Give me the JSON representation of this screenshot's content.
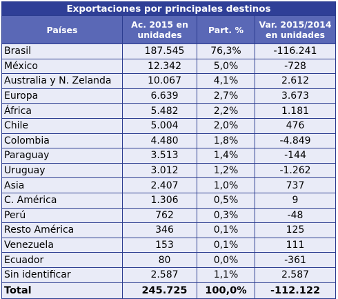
{
  "title": "Exportaciones por principales destinos",
  "columns": {
    "country": "Países",
    "units_line1": "Ac. 2015 en",
    "units_line2": "unidades",
    "share": "Part. %",
    "var_line1": "Var. 2015/2014",
    "var_line2": "en unidades"
  },
  "rows": [
    {
      "country": "Brasil",
      "units": "187.545",
      "share": "76,3%",
      "var": "-116.241"
    },
    {
      "country": "México",
      "units": "12.342",
      "share": "5,0%",
      "var": "-728"
    },
    {
      "country": "Australia y N. Zelanda",
      "units": "10.067",
      "share": "4,1%",
      "var": "2.612"
    },
    {
      "country": "Europa",
      "units": "6.639",
      "share": "2,7%",
      "var": "3.673"
    },
    {
      "country": "África",
      "units": "5.482",
      "share": "2,2%",
      "var": "1.181"
    },
    {
      "country": "Chile",
      "units": "5.004",
      "share": "2,0%",
      "var": "476"
    },
    {
      "country": "Colombia",
      "units": "4.480",
      "share": "1,8%",
      "var": "-4.849"
    },
    {
      "country": "Paraguay",
      "units": "3.513",
      "share": "1,4%",
      "var": "-144"
    },
    {
      "country": "Uruguay",
      "units": "3.012",
      "share": "1,2%",
      "var": "-1.262"
    },
    {
      "country": "Asia",
      "units": "2.407",
      "share": "1,0%",
      "var": "737"
    },
    {
      "country": "C. América",
      "units": "1.306",
      "share": "0,5%",
      "var": "9"
    },
    {
      "country": "Perú",
      "units": "762",
      "share": "0,3%",
      "var": "-48"
    },
    {
      "country": "Resto América",
      "units": "346",
      "share": "0,1%",
      "var": "125"
    },
    {
      "country": "Venezuela",
      "units": "153",
      "share": "0,1%",
      "var": "111"
    },
    {
      "country": "Ecuador",
      "units": "80",
      "share": "0,0%",
      "var": "-361"
    },
    {
      "country": "Sin identificar",
      "units": "2.587",
      "share": "1,1%",
      "var": "2.587"
    }
  ],
  "total": {
    "label": "Total",
    "units": "245.725",
    "share": "100,0%",
    "var": "-112.122"
  },
  "colors": {
    "title_bg": "#2f3f97",
    "header_bg": "#5a68b6",
    "row_bg": "#e9ebf7",
    "border": "#2b3c8f"
  }
}
